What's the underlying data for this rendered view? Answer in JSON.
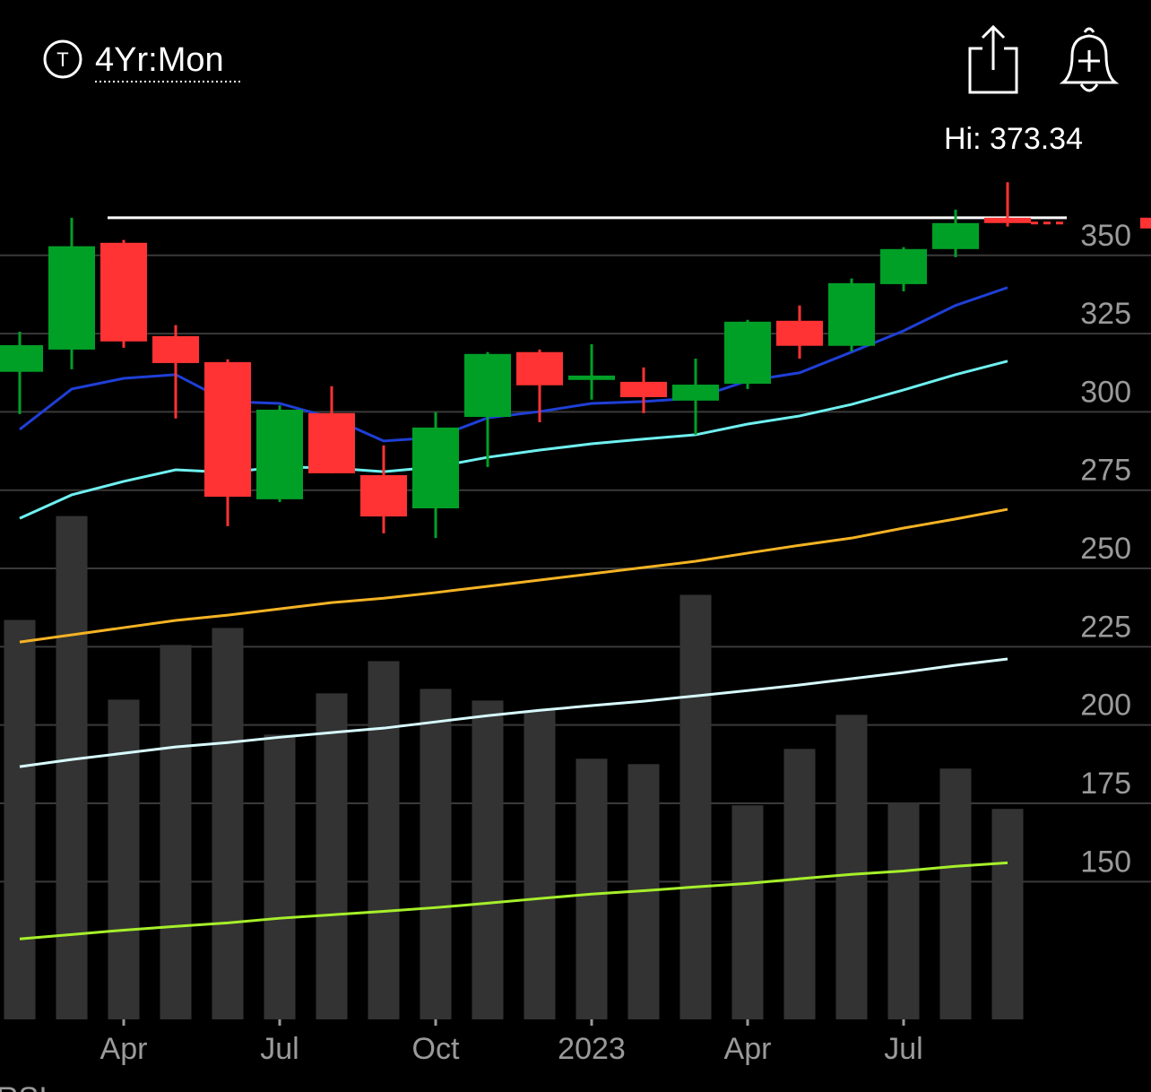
{
  "chart_data": {
    "type": "candlestick",
    "period": "4Yr:Mon",
    "hi_label": "Hi: 373.34",
    "indicator": "RSI",
    "categories": [
      null,
      null,
      "Apr",
      null,
      null,
      "Jul",
      null,
      null,
      "Oct",
      null,
      null,
      "2023",
      null,
      null,
      "Apr",
      null,
      null,
      "Jul",
      null,
      null
    ],
    "open": [
      312.8,
      319.9,
      354.0,
      324.2,
      315.9,
      272.1,
      299.6,
      279.8,
      269.2,
      298.4,
      319.1,
      310.2,
      309.6,
      303.6,
      309.0,
      329.1,
      321.1,
      340.8,
      352.0,
      362.0
    ],
    "high": [
      325.6,
      362.0,
      354.9,
      327.7,
      316.8,
      302.1,
      308.2,
      289.3,
      299.9,
      319.1,
      319.9,
      321.6,
      314.2,
      317.0,
      329.4,
      334.0,
      342.6,
      352.6,
      364.6,
      373.34
    ],
    "low": [
      299.3,
      313.6,
      320.5,
      297.9,
      263.5,
      271.2,
      280.4,
      261.2,
      259.7,
      282.4,
      296.7,
      303.9,
      299.6,
      292.7,
      307.3,
      317.0,
      319.3,
      338.5,
      349.4,
      359.2
    ],
    "close": [
      321.3,
      352.9,
      322.5,
      315.6,
      272.9,
      300.7,
      280.4,
      266.6,
      295.0,
      318.5,
      308.5,
      311.6,
      304.7,
      308.7,
      328.8,
      321.1,
      341.1,
      352.0,
      360.3,
      360.3
    ],
    "colors": {
      "up": "#00a027",
      "down": "#ff3333"
    },
    "volume": {
      "color": "#333333",
      "vlim": [
        0,
        958
      ],
      "values": [
        446,
        562,
        357,
        418,
        437,
        318,
        364,
        400,
        369,
        356,
        345,
        291,
        285,
        474,
        239,
        302,
        340,
        242,
        280,
        235
      ]
    },
    "moving_averages": [
      {
        "color": "#1f3fd6",
        "values": [
          294.4,
          307.3,
          310.7,
          311.9,
          303.3,
          302.7,
          298.1,
          290.7,
          291.8,
          298.1,
          300.1,
          302.7,
          303.3,
          304.4,
          309.9,
          312.5,
          319.1,
          325.9,
          334.0,
          339.7
        ]
      },
      {
        "color": "#6ff0f0",
        "values": [
          266.0,
          273.5,
          277.8,
          281.5,
          280.7,
          282.4,
          282.1,
          280.9,
          282.4,
          285.5,
          287.8,
          289.8,
          291.3,
          292.7,
          296.1,
          298.7,
          302.4,
          307.0,
          311.9,
          316.2
        ]
      },
      {
        "color": "#f5b324",
        "values": [
          226.5,
          228.8,
          231.1,
          233.4,
          235.1,
          237.1,
          239.1,
          240.5,
          242.3,
          244.3,
          246.3,
          248.3,
          250.3,
          252.3,
          254.9,
          257.4,
          259.7,
          262.9,
          265.8,
          268.9
        ]
      },
      {
        "color": "#d8fbff",
        "values": [
          186.7,
          189.0,
          191.0,
          193.0,
          194.4,
          196.1,
          197.6,
          199.0,
          201.0,
          203.0,
          204.7,
          206.2,
          207.6,
          209.3,
          211.0,
          212.8,
          214.8,
          216.8,
          219.1,
          221.1
        ]
      },
      {
        "color": "#a6ef2a",
        "values": [
          131.7,
          133.1,
          134.5,
          135.7,
          136.8,
          138.3,
          139.4,
          140.5,
          141.7,
          143.1,
          144.6,
          146.0,
          147.1,
          148.3,
          149.4,
          150.9,
          152.3,
          153.4,
          154.9,
          156.0
        ]
      }
    ],
    "reference_line": 362.0,
    "ylim": [
      106,
      380
    ],
    "yticks": [
      150,
      175,
      200,
      225,
      250,
      275,
      300,
      325,
      350
    ],
    "grid": true
  }
}
